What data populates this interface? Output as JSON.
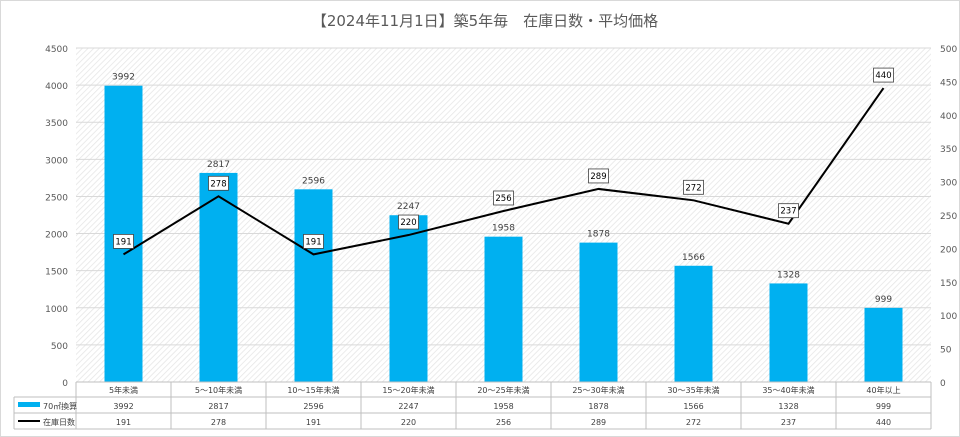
{
  "chart_data": {
    "type": "bar",
    "title": "【2024年11月1日】築5年毎　在庫日数・平均価格",
    "categories": [
      "5年未満",
      "5～10年未満",
      "10～15年未満",
      "15～20年未満",
      "20～25年未満",
      "25～30年未満",
      "30～35年未満",
      "35～40年未満",
      "40年以上"
    ],
    "series": [
      {
        "name": "70㎡換算",
        "type": "bar",
        "axis": "left",
        "color": "#00b0f0",
        "values": [
          3992,
          2817,
          2596,
          2247,
          1958,
          1878,
          1566,
          1328,
          999
        ]
      },
      {
        "name": "在庫日数",
        "type": "line",
        "axis": "right",
        "color": "#000000",
        "values": [
          191,
          278,
          191,
          220,
          256,
          289,
          272,
          237,
          440
        ]
      }
    ],
    "y_left": {
      "min": 0,
      "max": 4500,
      "step": 500,
      "ticks": [
        "0",
        "500",
        "1000",
        "1500",
        "2000",
        "2500",
        "3000",
        "3500",
        "4000",
        "4500"
      ]
    },
    "y_right": {
      "min": 0,
      "max": 500,
      "step": 50,
      "ticks": [
        "0",
        "50",
        "100",
        "150",
        "200",
        "250",
        "300",
        "350",
        "400",
        "450",
        "500"
      ]
    },
    "grid": true,
    "data_table": true
  }
}
